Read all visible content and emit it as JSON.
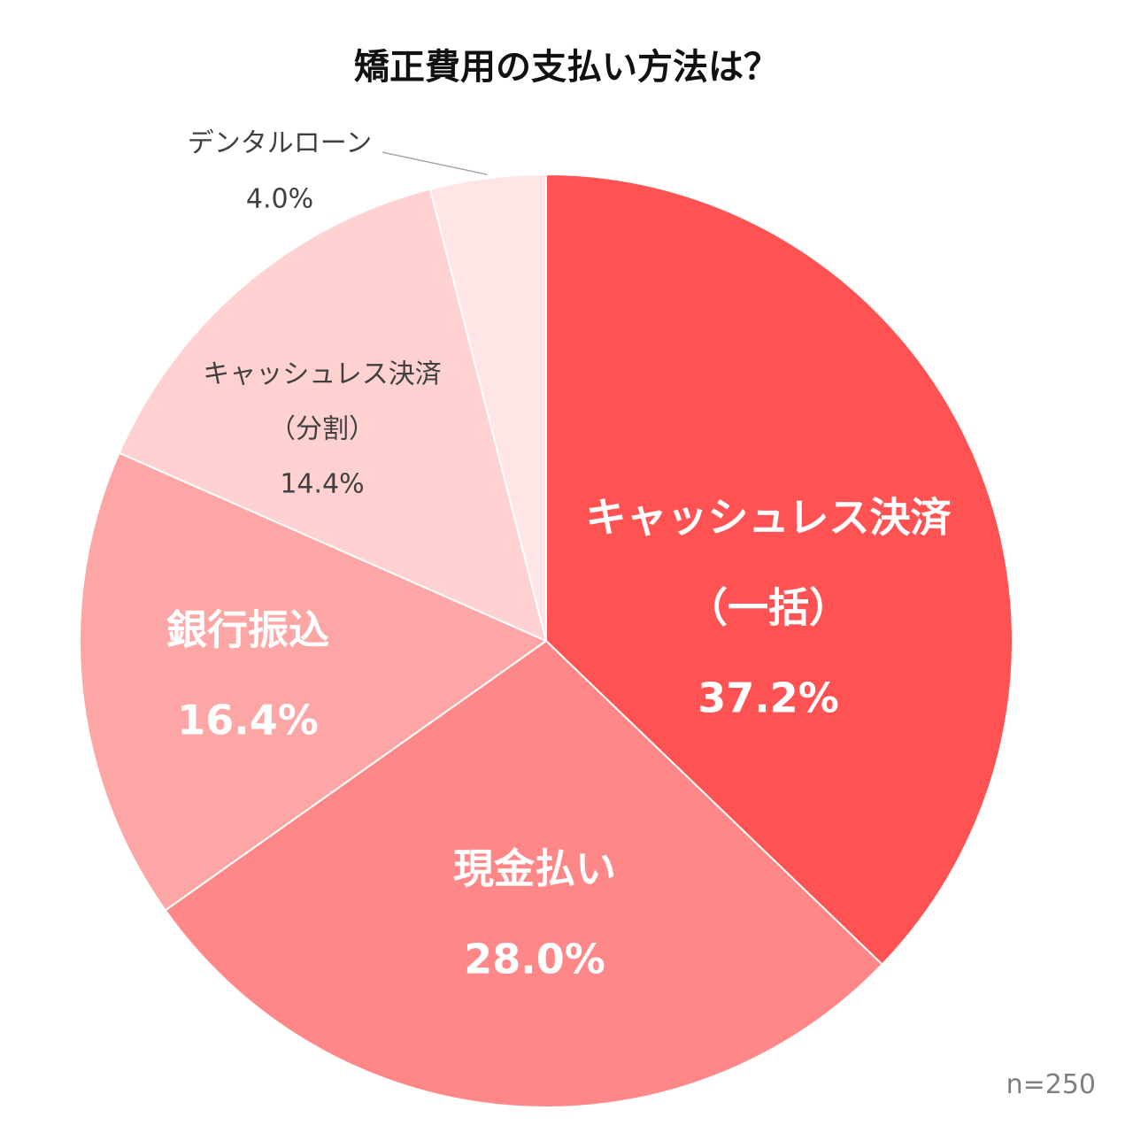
{
  "chart_data": {
    "type": "pie",
    "title": "矯正費用の支払い方法は？",
    "note": "n=250",
    "slices": [
      {
        "name_lines": [
          "キャッシュレス決済",
          "（一括）"
        ],
        "label": "37.2%",
        "value": 37.2,
        "color": "#ff5252",
        "label_style": "inside-large"
      },
      {
        "name_lines": [
          "現金払い"
        ],
        "label": "28.0%",
        "value": 28.0,
        "color": "#ff8787",
        "label_style": "inside-large"
      },
      {
        "name_lines": [
          "銀行振込"
        ],
        "label": "16.4%",
        "value": 16.4,
        "color": "#fea5a5",
        "label_style": "inside-large"
      },
      {
        "name_lines": [
          "キャッシュレス決済",
          "（分割）"
        ],
        "label": "14.4%",
        "value": 14.4,
        "color": "#ffd1d1",
        "label_style": "inside-small"
      },
      {
        "name_lines": [
          "デンタルローン"
        ],
        "label": "4.0%",
        "value": 4.0,
        "color": "#ffe5e5",
        "label_style": "outside-small"
      }
    ]
  }
}
